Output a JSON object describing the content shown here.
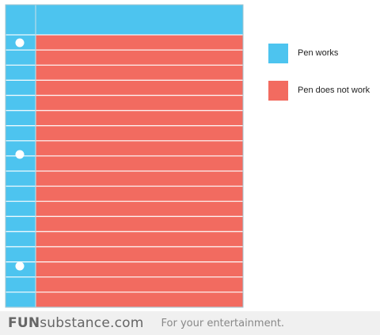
{
  "chart_data": {
    "type": "area",
    "title": "",
    "series": [
      {
        "name": "Pen works",
        "value": 10,
        "color": "#4dc4ef"
      },
      {
        "name": "Pen does not work",
        "value": 90,
        "color": "#f26b60"
      }
    ],
    "legend_position": "right"
  },
  "legend": {
    "items": [
      {
        "label": "Pen works",
        "color": "#4dc4ef"
      },
      {
        "label": "Pen does not work",
        "color": "#f26b60"
      }
    ]
  },
  "footer": {
    "brand_bold": "FUN",
    "brand_rest": "substance.com",
    "tagline": "For your entertainment."
  }
}
